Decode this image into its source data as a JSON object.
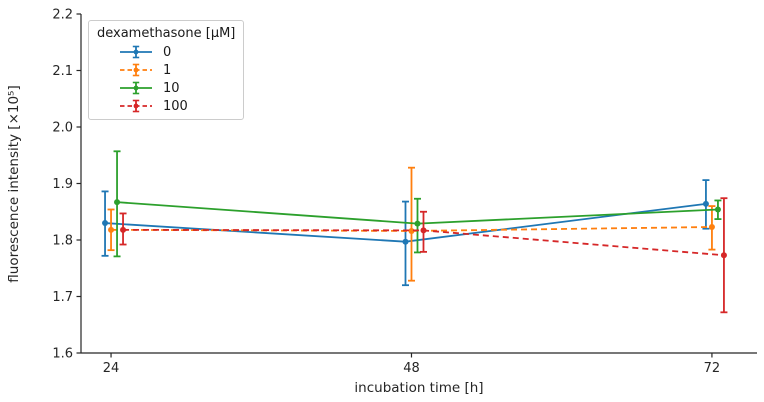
{
  "chart_data": {
    "type": "line",
    "title": "",
    "xlabel": "incubation time [h]",
    "ylabel": "fluorescence intensity [×10⁵]",
    "x": [
      24,
      48,
      72
    ],
    "xticks": [
      24,
      48,
      72
    ],
    "yticks": [
      1.6,
      1.7,
      1.8,
      1.9,
      2.0,
      2.1,
      2.2
    ],
    "xlim": [
      21.6,
      75.6
    ],
    "ylim": [
      1.6,
      2.2
    ],
    "grid": false,
    "legend": {
      "title": "dexamethasone [μM]",
      "position": "upper-left"
    },
    "series": [
      {
        "name": "0",
        "color": "#1f77b4",
        "dash": "solid",
        "values": [
          1.83,
          1.797,
          1.864
        ],
        "err_low": [
          0.058,
          0.077,
          0.044
        ],
        "err_high": [
          0.056,
          0.071,
          0.042
        ]
      },
      {
        "name": "1",
        "color": "#ff7f0e",
        "dash": "dashed",
        "values": [
          1.818,
          1.816,
          1.823
        ],
        "err_low": [
          0.036,
          0.088,
          0.04
        ],
        "err_high": [
          0.036,
          0.112,
          0.037
        ]
      },
      {
        "name": "10",
        "color": "#2ca02c",
        "dash": "solid",
        "values": [
          1.867,
          1.829,
          1.854
        ],
        "err_low": [
          0.096,
          0.051,
          0.017
        ],
        "err_high": [
          0.09,
          0.044,
          0.016
        ]
      },
      {
        "name": "100",
        "color": "#d62728",
        "dash": "dashed",
        "values": [
          1.818,
          1.817,
          1.773
        ],
        "err_low": [
          0.026,
          0.038,
          0.101
        ],
        "err_high": [
          0.029,
          0.033,
          0.101
        ]
      }
    ]
  }
}
